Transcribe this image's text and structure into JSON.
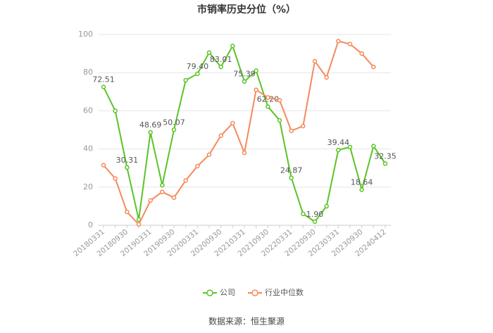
{
  "chart_data": {
    "type": "line",
    "title": "市销率历史分位（%）",
    "categories": [
      "20180331",
      null,
      "20180930",
      null,
      "20190331",
      null,
      "20190930",
      null,
      "20200331",
      null,
      "20200930",
      null,
      "20210331",
      null,
      "20210930",
      null,
      "20220331",
      null,
      "20220930",
      null,
      "20230331",
      null,
      "20230930",
      null,
      "20240412"
    ],
    "series": [
      {
        "name": "公司",
        "color": "#5ac427",
        "values": [
          72.51,
          60,
          30.31,
          3,
          48.69,
          21,
          50.07,
          76,
          79.4,
          90.5,
          83.01,
          94,
          75.39,
          81,
          62.2,
          55,
          24.87,
          6,
          1.9,
          10,
          39.44,
          41,
          18.64,
          41.5,
          32.35
        ],
        "value_labels": [
          "72.51",
          null,
          "30.31",
          null,
          "48.69",
          null,
          "50.07",
          null,
          "79.40",
          null,
          "83.01",
          null,
          "75.39",
          null,
          "62.20",
          null,
          "24.87",
          null,
          "1.90",
          null,
          "39.44",
          null,
          "18.64",
          null,
          "32.35"
        ]
      },
      {
        "name": "行业中位数",
        "color": "#f5895b",
        "values": [
          31.5,
          24.5,
          7,
          0.5,
          13,
          17.5,
          14.5,
          23.5,
          31,
          37,
          47,
          53.5,
          38,
          71,
          67,
          65.5,
          49.5,
          52,
          86,
          77.5,
          96.5,
          95,
          90,
          83,
          null
        ]
      }
    ],
    "ylim": [
      0,
      100
    ],
    "yticks": [
      0,
      20,
      40,
      60,
      80,
      100
    ],
    "grid": true,
    "legend": "bottom",
    "source": "数据来源：恒生聚源"
  }
}
